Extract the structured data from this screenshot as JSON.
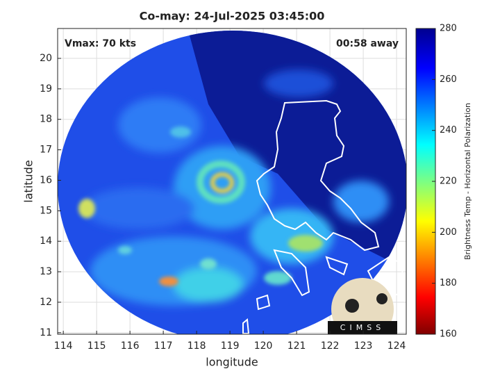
{
  "chart_data": {
    "type": "map",
    "title": "Co-may: 24-Jul-2025 03:45:00",
    "annotations": [
      "Vmax: 70 kts",
      "00:58 away"
    ],
    "xlabel": "longitude",
    "ylabel": "latitude",
    "xlim": [
      113.83,
      124.29
    ],
    "ylim": [
      10.95,
      20.98
    ],
    "xticks": [
      114,
      115,
      116,
      117,
      118,
      119,
      120,
      121,
      122,
      123,
      124
    ],
    "yticks": [
      11,
      12,
      13,
      14,
      15,
      16,
      17,
      18,
      19,
      20
    ],
    "grid": true,
    "colorbar": {
      "label": "Brightness Temp - Horizontal Polarization",
      "lim": [
        160,
        280
      ],
      "ticks": [
        160,
        180,
        200,
        220,
        240,
        260,
        280
      ]
    },
    "logo": "CIMSS"
  }
}
